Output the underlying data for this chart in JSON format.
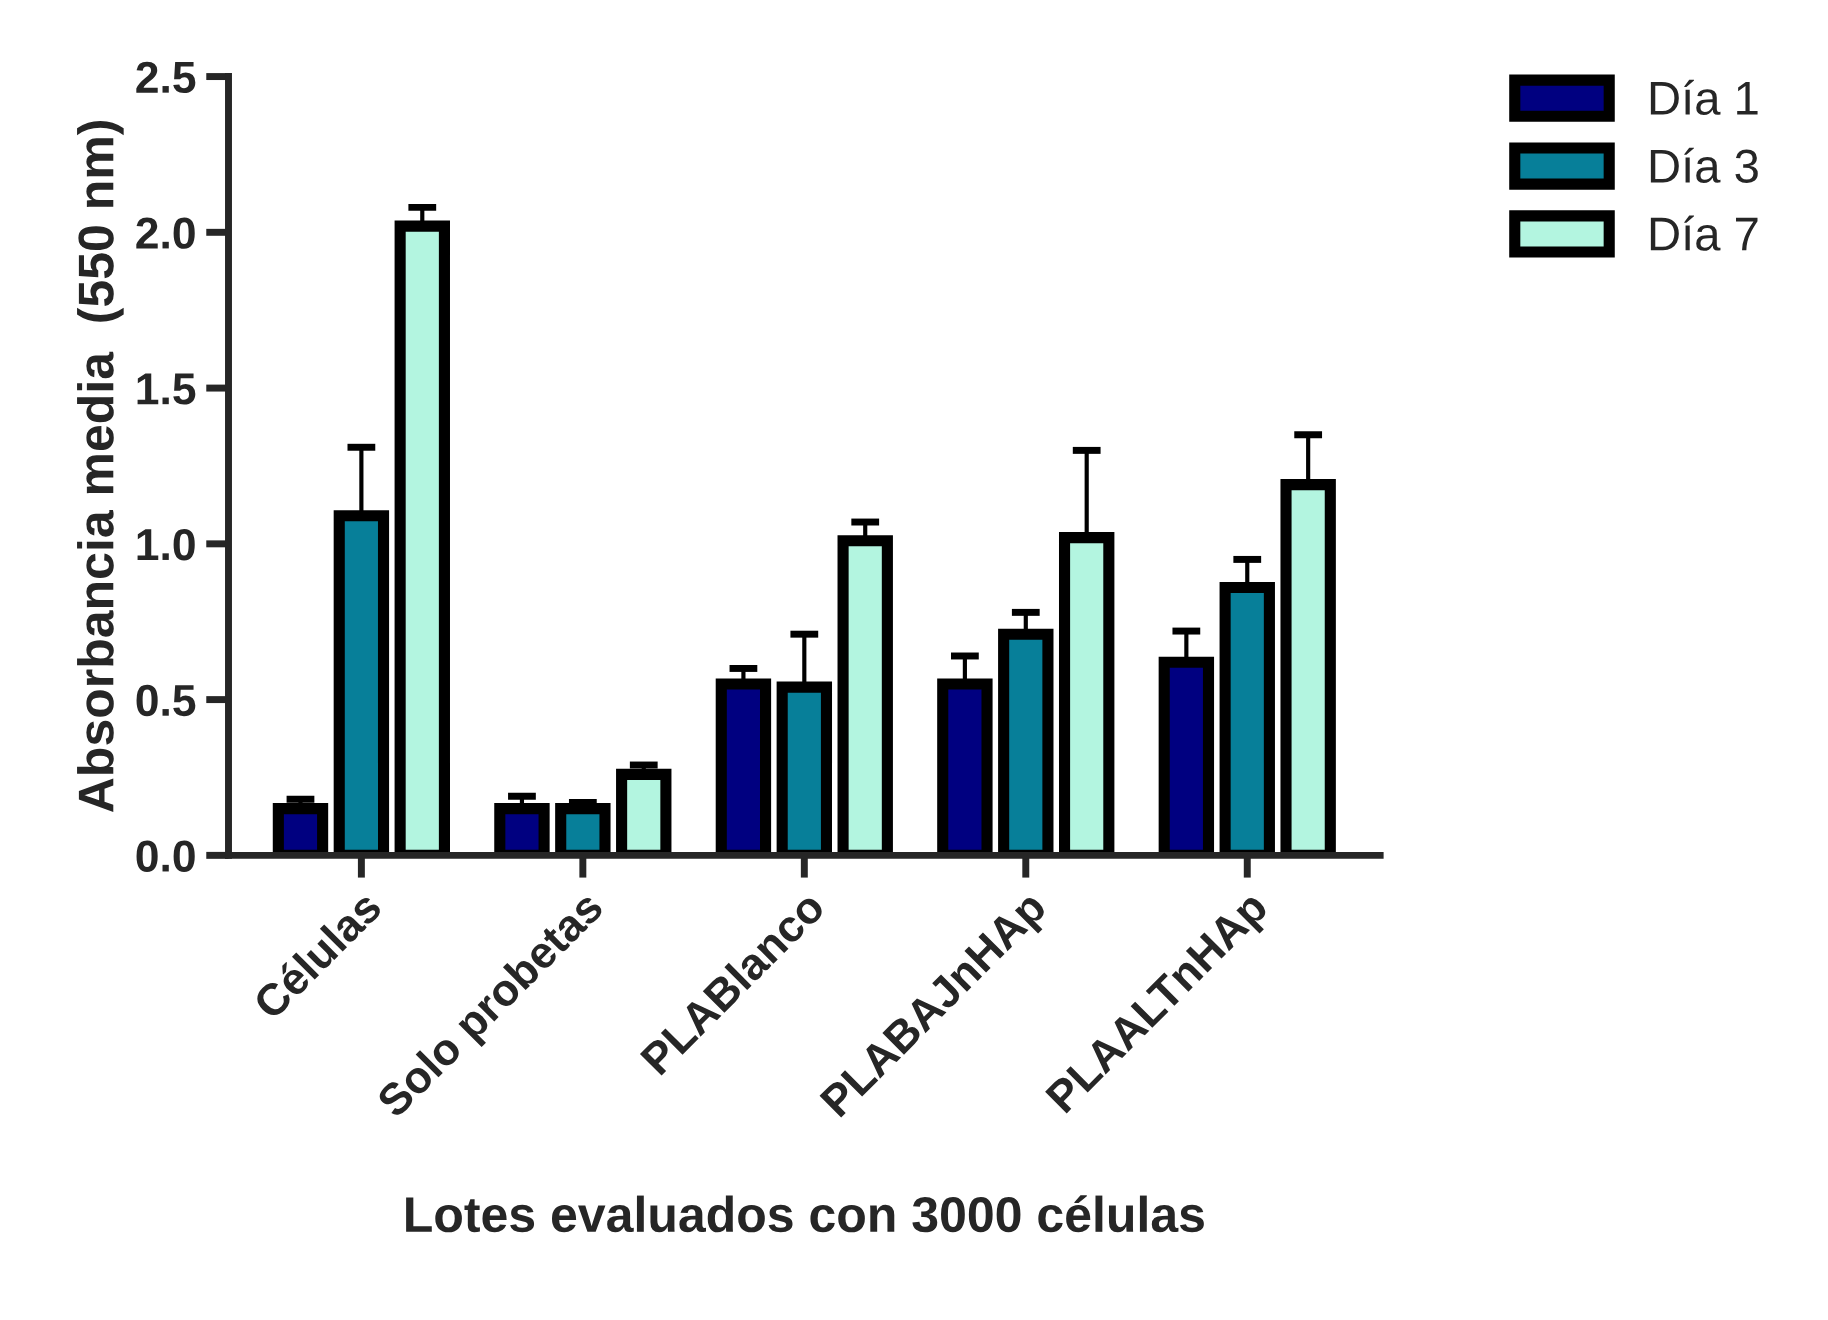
{
  "chart_data": {
    "type": "bar",
    "xlabel": "Lotes evaluados con 3000 células",
    "ylabel": "Absorbancia media  (550 nm)",
    "categories": [
      "Células",
      "Solo probetas",
      "PLABlanco",
      "PLABAJnHAp",
      "PLAALTnHAp"
    ],
    "series": [
      {
        "name": "Día 1",
        "color": "#000080",
        "values": [
          0.15,
          0.15,
          0.55,
          0.55,
          0.62
        ],
        "errors": [
          0.03,
          0.04,
          0.05,
          0.09,
          0.1
        ]
      },
      {
        "name": "Día 3",
        "color": "#077f99",
        "values": [
          1.09,
          0.15,
          0.54,
          0.71,
          0.86
        ],
        "errors": [
          0.22,
          0.02,
          0.17,
          0.07,
          0.09
        ]
      },
      {
        "name": "Día 7",
        "color": "#b3f5e0",
        "values": [
          2.02,
          0.26,
          1.01,
          1.02,
          1.19
        ],
        "errors": [
          0.06,
          0.03,
          0.06,
          0.28,
          0.16
        ]
      }
    ],
    "ylim": [
      0,
      2.5
    ],
    "yticks": [
      {
        "value": 0,
        "label": "0.0"
      },
      {
        "value": 0.5,
        "label": "0.5"
      },
      {
        "value": 1,
        "label": "1.0"
      },
      {
        "value": 1.5,
        "label": "1.5"
      },
      {
        "value": 2,
        "label": "2.0"
      },
      {
        "value": 2.5,
        "label": "2.5"
      }
    ],
    "legend": "right",
    "grid": false
  }
}
